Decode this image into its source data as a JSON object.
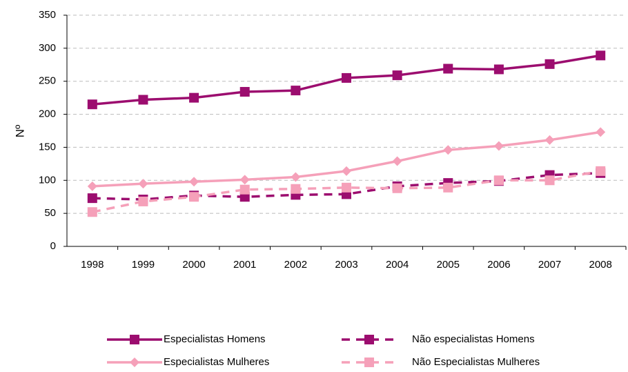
{
  "chart_data": {
    "type": "line",
    "ylabel": "Nº",
    "categories": [
      "1998",
      "1999",
      "2000",
      "2001",
      "2002",
      "2003",
      "2004",
      "2005",
      "2006",
      "2007",
      "2008"
    ],
    "series": [
      {
        "name": "Especialistas Homens",
        "color": "#9c0d6f",
        "marker": "square",
        "dashed": false,
        "values": [
          215,
          222,
          225,
          234,
          236,
          255,
          259,
          269,
          268,
          276,
          289
        ]
      },
      {
        "name": "Especialistas Mulheres",
        "color": "#f5a0b9",
        "marker": "diamond",
        "dashed": false,
        "values": [
          91,
          95,
          98,
          101,
          105,
          114,
          129,
          146,
          152,
          161,
          173
        ]
      },
      {
        "name": "Não especialistas Homens",
        "color": "#9c0d6f",
        "marker": "square",
        "dashed": true,
        "values": [
          73,
          71,
          77,
          75,
          78,
          79,
          91,
          96,
          99,
          108,
          111
        ]
      },
      {
        "name": "Não Especialistas Mulheres",
        "color": "#f5a0b9",
        "marker": "square",
        "dashed": true,
        "values": [
          52,
          68,
          75,
          86,
          87,
          89,
          88,
          89,
          100,
          100,
          114
        ]
      }
    ],
    "ylim": [
      0,
      350
    ],
    "yticks": [
      0,
      50,
      100,
      150,
      200,
      250,
      300,
      350
    ],
    "grid": true,
    "legend": "bottom"
  }
}
